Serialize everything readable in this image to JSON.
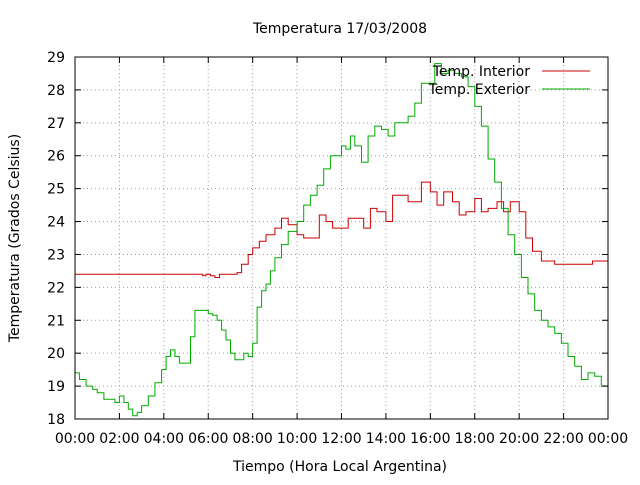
{
  "chart_data": {
    "type": "line",
    "title": "Temperatura 17/03/2008",
    "xlabel": "Tiempo (Hora Local Argentina)",
    "ylabel": "Temperatura (Grados Celsius)",
    "x_unit": "hours",
    "xlim": [
      0,
      24
    ],
    "ylim": [
      18,
      29
    ],
    "x_ticks": [
      0,
      2,
      4,
      6,
      8,
      10,
      12,
      14,
      16,
      18,
      20,
      22,
      24
    ],
    "x_tick_labels": [
      "00:00",
      "02:00",
      "04:00",
      "06:00",
      "08:00",
      "10:00",
      "12:00",
      "14:00",
      "16:00",
      "18:00",
      "20:00",
      "22:00",
      "00:00"
    ],
    "y_ticks": [
      18,
      19,
      20,
      21,
      22,
      23,
      24,
      25,
      26,
      27,
      28,
      29
    ],
    "y_tick_labels": [
      "18",
      "19",
      "20",
      "21",
      "22",
      "23",
      "24",
      "25",
      "26",
      "27",
      "28",
      "29"
    ],
    "grid": true,
    "legend_position": "top-right",
    "series": [
      {
        "name": "Temp. Interior",
        "color": "#cc0000",
        "x": [
          0,
          0.5,
          1,
          1.5,
          2,
          2.5,
          3,
          3.5,
          4,
          4.5,
          5,
          5.5,
          5.75,
          5.9,
          6.1,
          6.3,
          6.5,
          7,
          7.3,
          7.5,
          7.8,
          8,
          8.3,
          8.6,
          9,
          9.3,
          9.6,
          10,
          10.3,
          10.6,
          11,
          11.3,
          11.6,
          12,
          12.3,
          12.5,
          12.8,
          13,
          13.3,
          13.6,
          14,
          14.3,
          14.6,
          15,
          15.3,
          15.6,
          16,
          16.3,
          16.6,
          17,
          17.3,
          17.6,
          18,
          18.3,
          18.6,
          19,
          19.3,
          19.6,
          20,
          20.3,
          20.6,
          21,
          21.3,
          21.6,
          22,
          22.3,
          22.6,
          23,
          23.3,
          23.6,
          24
        ],
        "y": [
          22.4,
          22.4,
          22.4,
          22.4,
          22.4,
          22.4,
          22.4,
          22.4,
          22.4,
          22.4,
          22.4,
          22.4,
          22.35,
          22.4,
          22.35,
          22.3,
          22.4,
          22.4,
          22.45,
          22.7,
          23.0,
          23.2,
          23.4,
          23.6,
          23.8,
          24.1,
          23.9,
          23.6,
          23.5,
          23.5,
          24.2,
          24.0,
          23.8,
          23.8,
          24.1,
          24.1,
          24.1,
          23.8,
          24.4,
          24.3,
          24.0,
          24.8,
          24.8,
          24.6,
          24.6,
          25.2,
          24.9,
          24.5,
          24.9,
          24.6,
          24.2,
          24.3,
          24.7,
          24.3,
          24.4,
          24.6,
          24.3,
          24.6,
          24.3,
          23.5,
          23.1,
          22.8,
          22.8,
          22.7,
          22.7,
          22.7,
          22.7,
          22.7,
          22.8,
          22.8,
          22.8
        ]
      },
      {
        "name": "Temp. Exterior",
        "color": "#00aa00",
        "x": [
          0,
          0.2,
          0.5,
          0.8,
          1,
          1.3,
          1.6,
          1.8,
          2,
          2.2,
          2.4,
          2.6,
          2.8,
          3,
          3.3,
          3.6,
          3.9,
          4.1,
          4.3,
          4.5,
          4.7,
          5,
          5.2,
          5.4,
          5.7,
          6,
          6.2,
          6.4,
          6.6,
          6.8,
          7,
          7.2,
          7.4,
          7.6,
          7.8,
          8,
          8.2,
          8.4,
          8.6,
          8.8,
          9,
          9.3,
          9.6,
          10,
          10.3,
          10.6,
          10.9,
          11.2,
          11.5,
          11.8,
          12,
          12.2,
          12.4,
          12.6,
          12.9,
          13.2,
          13.5,
          13.8,
          14.1,
          14.4,
          14.7,
          15,
          15.3,
          15.6,
          15.9,
          16.2,
          16.5,
          16.8,
          17.1,
          17.4,
          17.7,
          18,
          18.3,
          18.6,
          18.9,
          19.2,
          19.5,
          19.8,
          20.1,
          20.4,
          20.7,
          21,
          21.3,
          21.6,
          21.9,
          22.2,
          22.5,
          22.8,
          23.1,
          23.4,
          23.7,
          24
        ],
        "y": [
          19.4,
          19.2,
          19.0,
          18.9,
          18.8,
          18.6,
          18.6,
          18.5,
          18.7,
          18.5,
          18.3,
          18.1,
          18.2,
          18.4,
          18.7,
          19.1,
          19.5,
          19.9,
          20.1,
          19.9,
          19.7,
          19.7,
          20.5,
          21.3,
          21.3,
          21.2,
          21.15,
          21.0,
          20.7,
          20.4,
          20.0,
          19.8,
          19.8,
          20.0,
          19.9,
          20.3,
          21.4,
          21.9,
          22.1,
          22.5,
          22.9,
          23.3,
          23.7,
          24.0,
          24.5,
          24.8,
          25.1,
          25.6,
          26.0,
          26.0,
          26.3,
          26.2,
          26.6,
          26.3,
          25.8,
          26.6,
          26.9,
          26.8,
          26.6,
          27.0,
          27.0,
          27.2,
          27.6,
          28.2,
          28.2,
          28.8,
          28.5,
          28.6,
          28.5,
          28.4,
          28.1,
          27.5,
          26.9,
          25.9,
          25.2,
          24.4,
          23.6,
          23.0,
          22.3,
          21.8,
          21.3,
          21.0,
          20.8,
          20.6,
          20.3,
          19.9,
          19.6,
          19.2,
          19.4,
          19.3,
          19.0,
          18.6
        ]
      }
    ]
  }
}
